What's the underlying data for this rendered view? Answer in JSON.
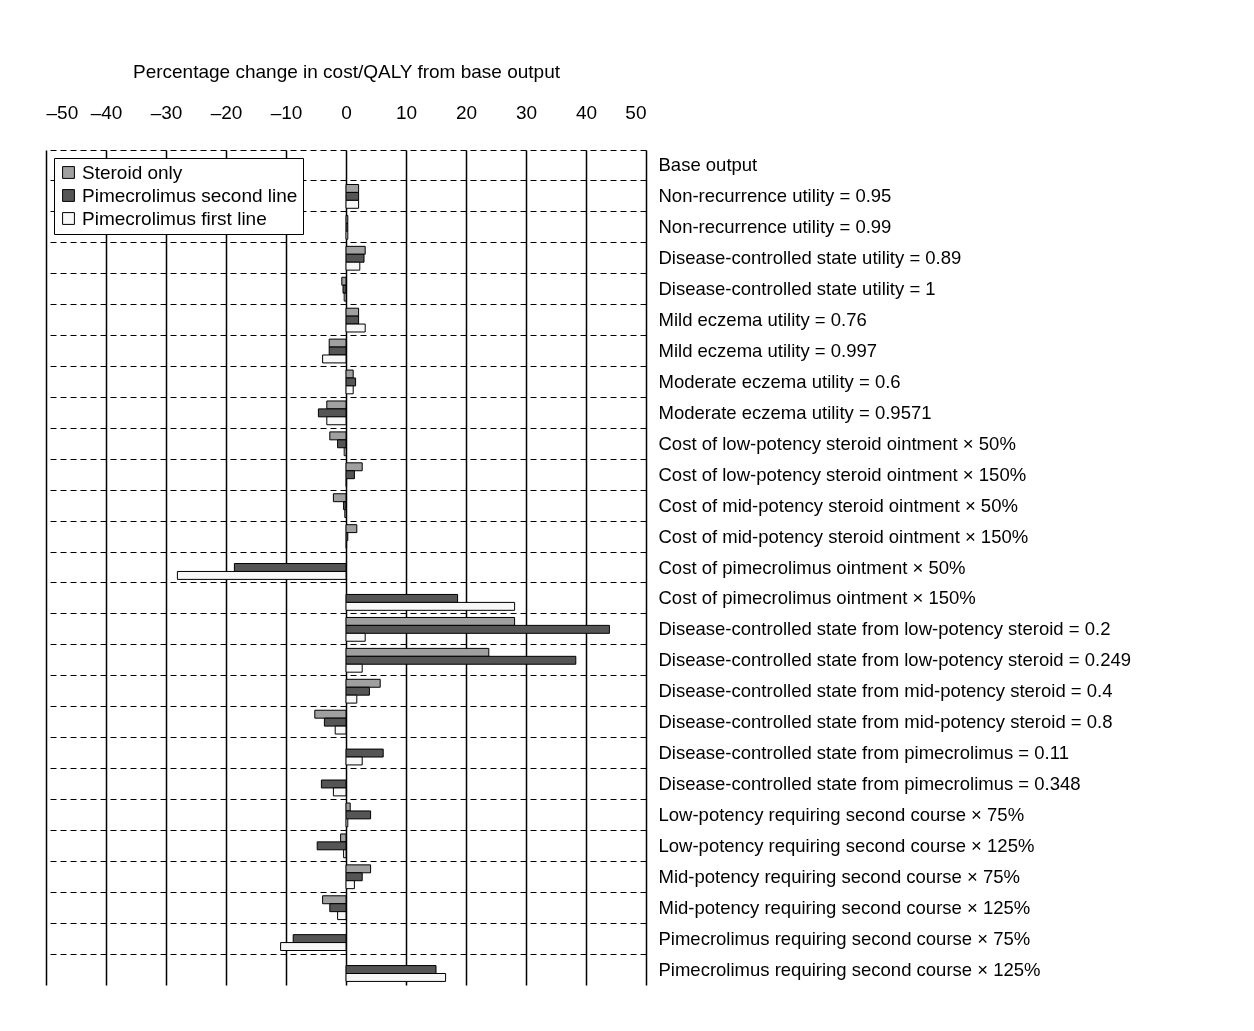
{
  "chart_data": {
    "type": "bar",
    "orientation": "horizontal",
    "xlabel": "Percentage change in cost/QALY from base output",
    "categories": [
      "Base output",
      "Non-recurrence utility = 0.95",
      "Non-recurrence utility = 0.99",
      "Disease-controlled state utility = 0.89",
      "Disease-controlled state utility = 1",
      "Mild eczema utility = 0.76",
      "Mild eczema utility = 0.997",
      "Moderate eczema utility = 0.6",
      "Moderate eczema utility = 0.9571",
      "Cost of low-potency steroid ointment × 50%",
      "Cost of low-potency steroid ointment × 150%",
      "Cost of mid-potency steroid ointment × 50%",
      "Cost of mid-potency steroid ointment × 150%",
      "Cost of pimecrolimus ointment × 50%",
      "Cost of pimecrolimus ointment × 150%",
      "Disease-controlled state from low-potency steroid = 0.2",
      "Disease-controlled state from low-potency steroid = 0.249",
      "Disease-controlled state from mid-potency steroid = 0.4",
      "Disease-controlled state from mid-potency steroid = 0.8",
      "Disease-controlled state from pimecrolimus = 0.11",
      "Disease-controlled state from pimecrolimus = 0.348",
      "Low-potency requiring second course × 75%",
      "Low-potency requiring second course × 125%",
      "Mid-potency requiring second course × 75%",
      "Mid-potency requiring second course × 125%",
      "Pimecrolimus requiring second course × 75%",
      "Pimecrolimus requiring second course × 125%"
    ],
    "series": [
      {
        "name": "Steroid only",
        "color": "#a0a0a0",
        "values": [
          null,
          2.1,
          0.3,
          3.2,
          -0.7,
          2.1,
          -2.8,
          1.2,
          -3.2,
          -2.7,
          2.7,
          -2.1,
          1.8,
          null,
          null,
          28.1,
          23.8,
          5.7,
          -5.2,
          null,
          null,
          0.7,
          -0.9,
          4.1,
          -3.9,
          null,
          null
        ]
      },
      {
        "name": "Pimecrolimus second line",
        "color": "#555555",
        "values": [
          null,
          2.1,
          0.3,
          3.0,
          -0.5,
          2.1,
          -2.8,
          1.6,
          -4.6,
          -1.4,
          1.4,
          -0.4,
          0.3,
          -18.6,
          18.6,
          43.9,
          38.3,
          3.9,
          -3.6,
          6.2,
          -4.1,
          4.1,
          -4.8,
          2.7,
          -2.7,
          -8.8,
          15.0
        ]
      },
      {
        "name": "Pimecrolimus first line",
        "color": "#f8f8f8",
        "values": [
          null,
          2.1,
          0.3,
          2.3,
          -0.3,
          3.2,
          -3.9,
          1.2,
          -3.2,
          -0.3,
          0.1,
          -0.2,
          0.1,
          -28.1,
          28.1,
          3.2,
          2.7,
          1.8,
          -1.8,
          2.7,
          -2.1,
          0.3,
          -0.4,
          1.4,
          -1.4,
          -10.9,
          16.6
        ]
      }
    ],
    "xlim": [
      -50,
      50
    ],
    "xticks": [
      {
        "value": -50,
        "label": "–50"
      },
      {
        "value": -40,
        "label": "–40"
      },
      {
        "value": -30,
        "label": "–30"
      },
      {
        "value": -20,
        "label": "–20"
      },
      {
        "value": -10,
        "label": "–10"
      },
      0,
      10,
      20,
      30,
      40,
      50
    ],
    "grid": true,
    "legend": "top left"
  }
}
